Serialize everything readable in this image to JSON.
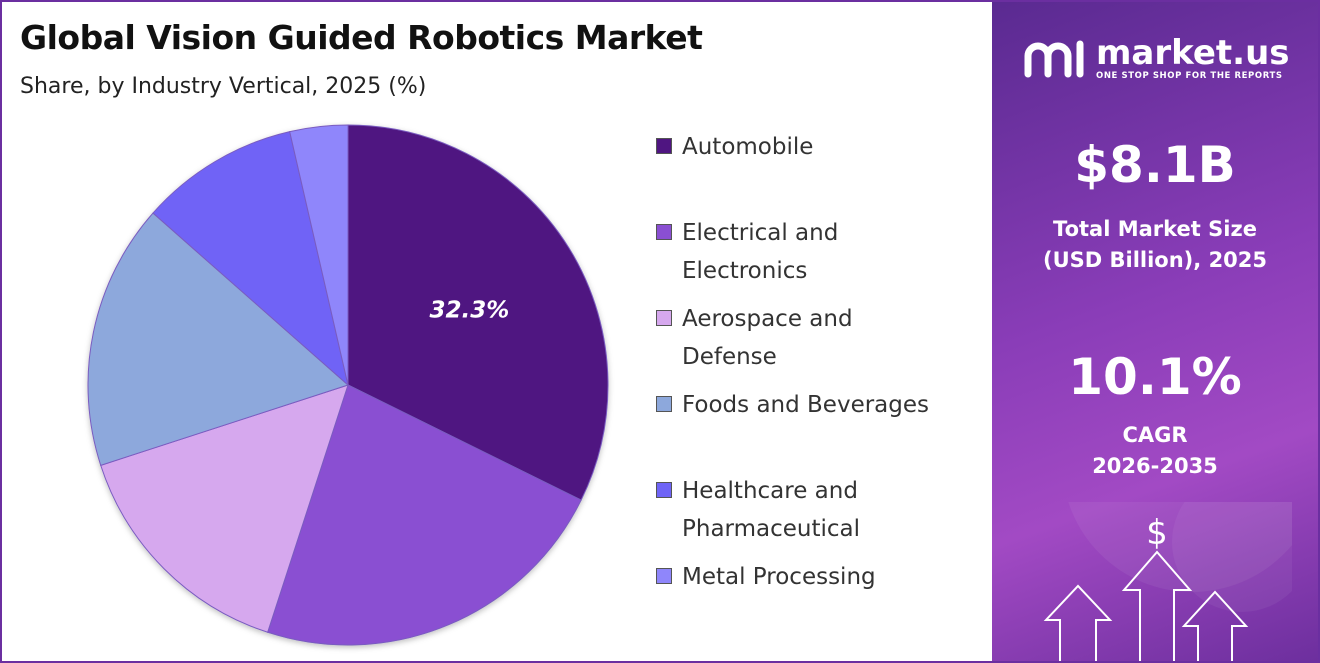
{
  "title": "Global Vision Guided Robotics Market",
  "subtitle": "Share, by Industry Vertical, 2025 (%)",
  "chart_data": {
    "type": "pie",
    "categories": [
      "Automobile",
      "Electrical and Electronics",
      "Aerospace and Defense",
      "Foods and Beverages",
      "Healthcare and Pharmaceutical",
      "Metal Processing"
    ],
    "values": [
      32.3,
      22.7,
      15.0,
      16.5,
      9.9,
      3.6
    ],
    "colors": [
      "#4f1581",
      "#8a4fd2",
      "#d6a8ee",
      "#8da8dc",
      "#6f64f6",
      "#8f86fb"
    ],
    "data_labels": [
      {
        "slice": "Automobile",
        "text": "32.3%"
      }
    ],
    "legend_position": "right"
  },
  "sidebar": {
    "brand_name": "market.us",
    "brand_tagline": "ONE STOP SHOP FOR THE REPORTS",
    "market_size_value": "$8.1B",
    "market_size_caption_line1": "Total Market Size",
    "market_size_caption_line2": "(USD Billion), 2025",
    "cagr_value": "10.1%",
    "cagr_caption_line1": "CAGR",
    "cagr_caption_line2": "2026-2035",
    "dollar_symbol": "$",
    "icons": [
      "market-us-logo-icon",
      "dollar-icon",
      "up-arrow-icon"
    ]
  }
}
